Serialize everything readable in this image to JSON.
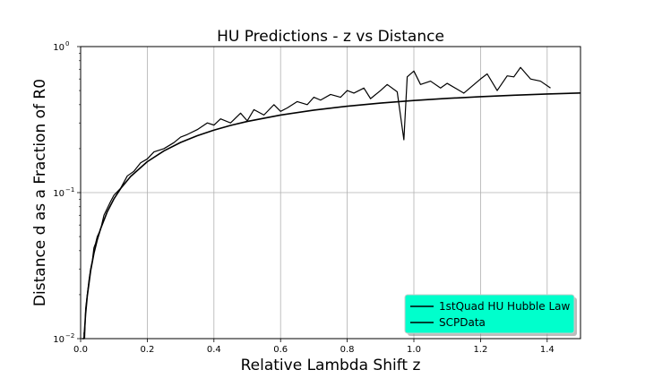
{
  "chart_data": {
    "type": "line",
    "title": "HU Predictions - z vs Distance",
    "xlabel": "Relative Lambda Shift z",
    "ylabel": "Distance d as a Fraction of R0",
    "xlim": [
      0,
      1.5
    ],
    "ylim": [
      0.01,
      1.0
    ],
    "yscale": "log",
    "grid": true,
    "legend_position": "bottom-right",
    "legend_bg_color": "#00ffcc",
    "line_color": "#000000",
    "x_ticks": [
      "0.0",
      "0.2",
      "0.4",
      "0.6",
      "0.8",
      "1.0",
      "1.2",
      "1.4"
    ],
    "y_ticks": [
      {
        "value": 0.01,
        "base": "10",
        "exp": "−2"
      },
      {
        "value": 0.1,
        "base": "10",
        "exp": "−1"
      },
      {
        "value": 1.0,
        "base": "10",
        "exp": "0"
      }
    ],
    "series": [
      {
        "name": "1stQuad HU Hubble Law",
        "style": "smooth",
        "x": [
          0.005,
          0.01,
          0.015,
          0.02,
          0.03,
          0.04,
          0.05,
          0.06,
          0.08,
          0.1,
          0.12,
          0.15,
          0.2,
          0.25,
          0.3,
          0.35,
          0.4,
          0.45,
          0.5,
          0.6,
          0.7,
          0.8,
          0.9,
          1.0,
          1.1,
          1.2,
          1.3,
          1.4,
          1.5
        ],
        "y": [
          0.005,
          0.0099,
          0.0148,
          0.0196,
          0.0291,
          0.0385,
          0.0476,
          0.0566,
          0.074,
          0.0906,
          0.1065,
          0.129,
          0.1628,
          0.1931,
          0.2205,
          0.2454,
          0.2679,
          0.2884,
          0.3071,
          0.3398,
          0.3673,
          0.3905,
          0.4103,
          0.4271,
          0.4416,
          0.4539,
          0.4645,
          0.4735,
          0.4812
        ]
      },
      {
        "name": "SCPData",
        "style": "noisy",
        "x": [
          0.01,
          0.012,
          0.015,
          0.02,
          0.025,
          0.03,
          0.035,
          0.04,
          0.045,
          0.05,
          0.06,
          0.07,
          0.08,
          0.09,
          0.1,
          0.12,
          0.14,
          0.16,
          0.18,
          0.2,
          0.22,
          0.25,
          0.28,
          0.3,
          0.32,
          0.35,
          0.38,
          0.4,
          0.42,
          0.45,
          0.48,
          0.5,
          0.52,
          0.55,
          0.58,
          0.6,
          0.62,
          0.65,
          0.68,
          0.7,
          0.72,
          0.75,
          0.78,
          0.8,
          0.82,
          0.85,
          0.87,
          0.9,
          0.92,
          0.95,
          0.97,
          0.98,
          1.0,
          1.02,
          1.05,
          1.08,
          1.1,
          1.15,
          1.2,
          1.22,
          1.25,
          1.28,
          1.3,
          1.32,
          1.35,
          1.38,
          1.41
        ],
        "y": [
          0.011,
          0.009,
          0.016,
          0.02,
          0.025,
          0.03,
          0.034,
          0.042,
          0.045,
          0.05,
          0.056,
          0.07,
          0.078,
          0.087,
          0.096,
          0.107,
          0.13,
          0.14,
          0.16,
          0.17,
          0.19,
          0.2,
          0.22,
          0.24,
          0.25,
          0.27,
          0.3,
          0.29,
          0.32,
          0.3,
          0.35,
          0.31,
          0.37,
          0.34,
          0.4,
          0.36,
          0.38,
          0.42,
          0.4,
          0.45,
          0.43,
          0.47,
          0.45,
          0.5,
          0.48,
          0.52,
          0.44,
          0.5,
          0.55,
          0.49,
          0.23,
          0.62,
          0.68,
          0.55,
          0.58,
          0.52,
          0.56,
          0.48,
          0.6,
          0.65,
          0.5,
          0.63,
          0.62,
          0.72,
          0.6,
          0.58,
          0.52
        ]
      }
    ]
  }
}
